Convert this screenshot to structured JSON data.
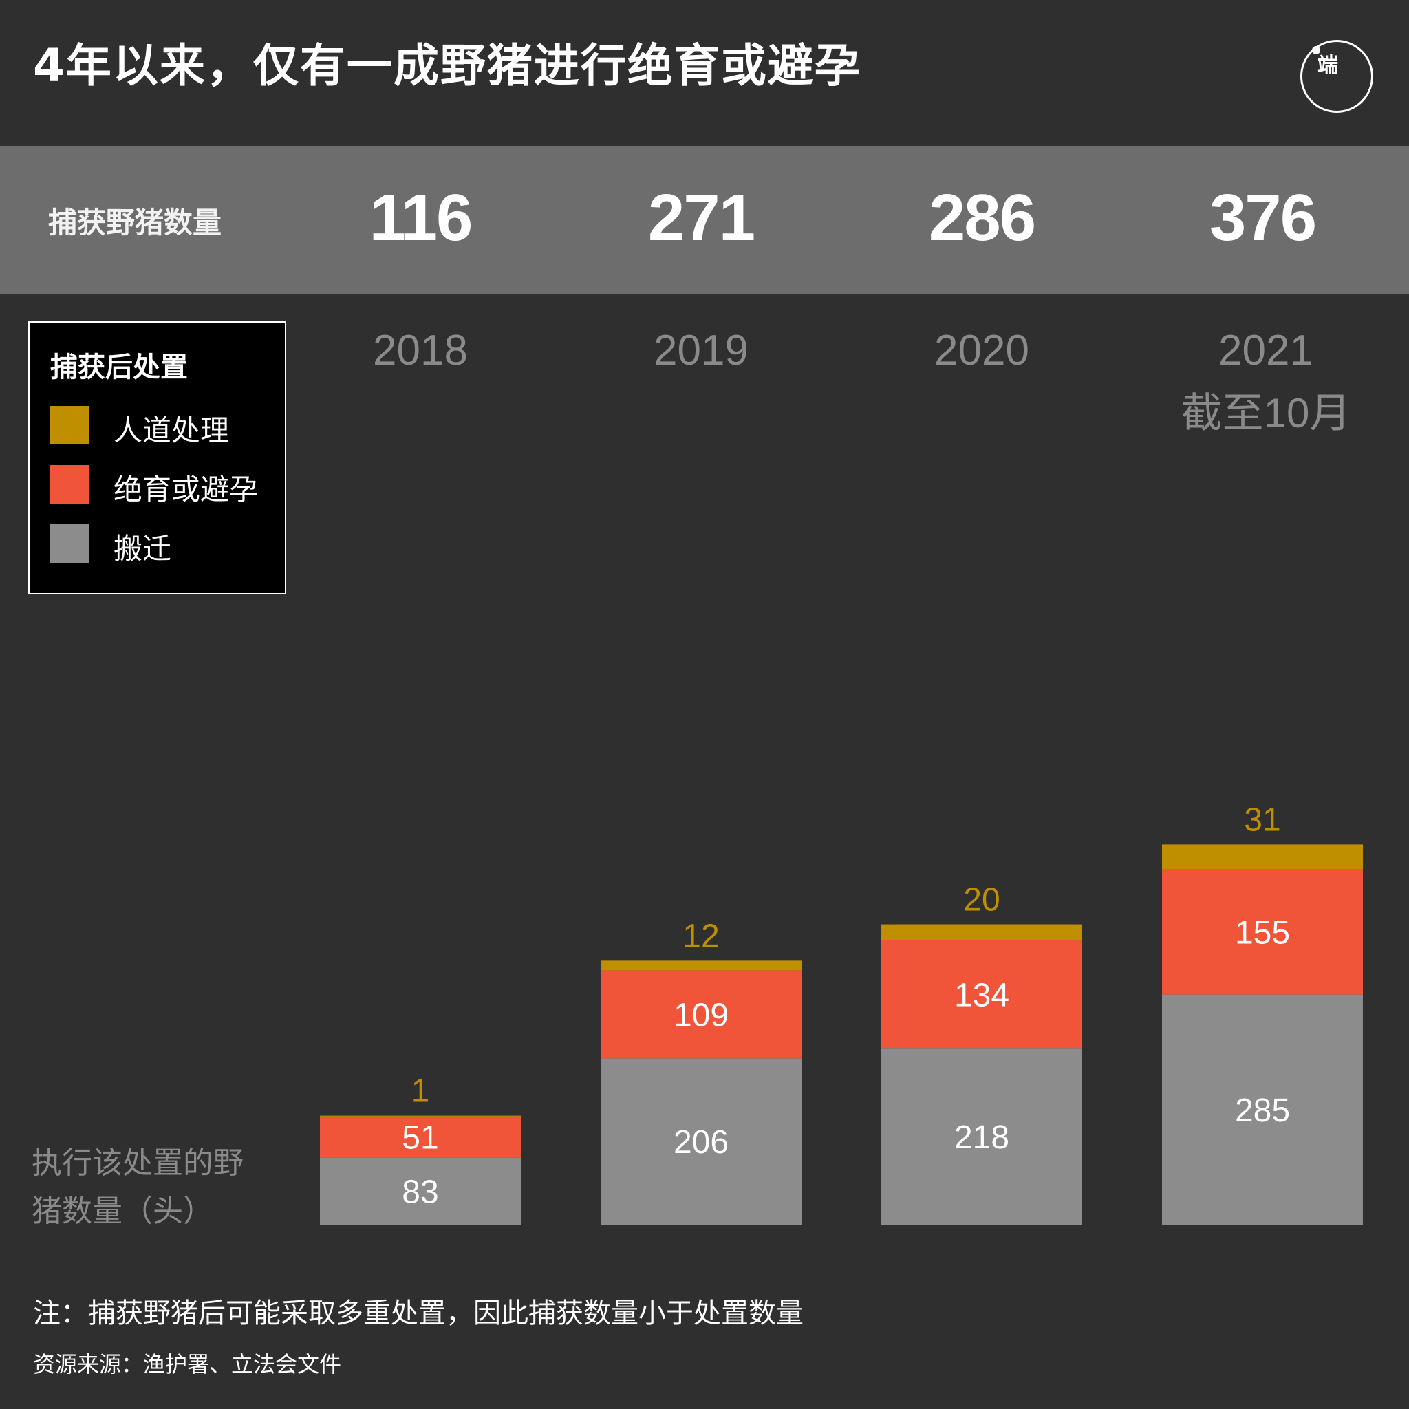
{
  "title": "4年以来，仅有一成野猪进行绝育或避孕",
  "logo_text": "端",
  "summary": {
    "label": "捕获野猪数量",
    "values": [
      "116",
      "271",
      "286",
      "376"
    ]
  },
  "year_note": "截至10月",
  "legend": {
    "title": "捕获后处置",
    "items": [
      {
        "label": "人道处理",
        "color": "#c08f00"
      },
      {
        "label": "绝育或避孕",
        "color": "#f15539"
      },
      {
        "label": "搬迁",
        "color": "#8c8c8c"
      }
    ]
  },
  "y_caption": "执行该处置的野猪数量（头）",
  "note": "注：捕获野猪后可能采取多重处置，因此捕获数量小于处置数量",
  "source": "资源来源：渔护署、立法会文件",
  "chart_data": {
    "type": "bar",
    "stacked": true,
    "categories": [
      "2018",
      "2019",
      "2020",
      "2021"
    ],
    "series": [
      {
        "name": "搬迁",
        "values": [
          83,
          206,
          218,
          285
        ],
        "color": "#8c8c8c"
      },
      {
        "name": "绝育或避孕",
        "values": [
          51,
          109,
          134,
          155
        ],
        "color": "#f15539"
      },
      {
        "name": "人道处理",
        "values": [
          1,
          12,
          20,
          31
        ],
        "color": "#c08f00"
      }
    ],
    "ylabel": "执行该处置的野猪数量（头）",
    "grid": false,
    "legend_position": "top-left"
  }
}
